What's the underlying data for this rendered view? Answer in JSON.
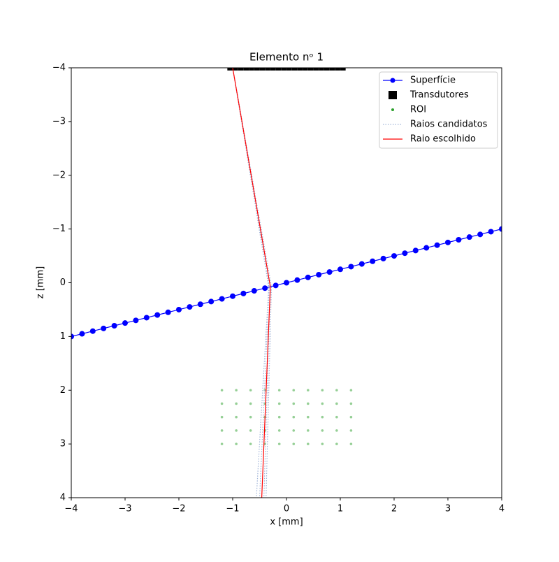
{
  "chart_data": {
    "type": "line",
    "title": "Elemento nᵒ 1",
    "x_label": "x [mm]",
    "y_label": "z [mm]",
    "xlim": [
      -4,
      4
    ],
    "ylim": [
      -4,
      4
    ],
    "y_inverted": true,
    "legend": "upper right",
    "xticks": [
      {
        "value": -4,
        "label": "−4"
      },
      {
        "value": -3,
        "label": "−3"
      },
      {
        "value": -2,
        "label": "−2"
      },
      {
        "value": -1,
        "label": "−1"
      },
      0,
      1,
      2,
      3,
      4
    ],
    "yticks": [
      {
        "value": -4,
        "label": "−4"
      },
      {
        "value": -3,
        "label": "−3"
      },
      {
        "value": -2,
        "label": "−2"
      },
      {
        "value": -1,
        "label": "−1"
      },
      0,
      1,
      2,
      3,
      4
    ],
    "series": [
      {
        "name": "Superfície",
        "color": "#0000ff",
        "marker": "o",
        "linestyle": "-",
        "x": [
          -4,
          -3.8,
          -3.6,
          -3.4,
          -3.2,
          -3,
          -2.8,
          -2.6,
          -2.4,
          -2.2,
          -2,
          -1.8,
          -1.6,
          -1.4,
          -1.2,
          -1,
          -0.8,
          -0.6,
          -0.4,
          -0.2,
          0,
          0.2,
          0.4,
          0.6,
          0.8,
          1,
          1.2,
          1.4,
          1.6,
          1.8,
          2,
          2.2,
          2.4,
          2.6,
          2.8,
          3,
          3.2,
          3.4,
          3.6,
          3.8,
          4
        ],
        "values": [
          1,
          0.95,
          0.9,
          0.85,
          0.8,
          0.75,
          0.7,
          0.65,
          0.6,
          0.55,
          0.5,
          0.45,
          0.4,
          0.35,
          0.3,
          0.25,
          0.2,
          0.15,
          0.1,
          0.05,
          0,
          -0.05,
          -0.1,
          -0.15,
          -0.2,
          -0.25,
          -0.3,
          -0.35,
          -0.4,
          -0.45,
          -0.5,
          -0.55,
          -0.6,
          -0.65,
          -0.7,
          -0.75,
          -0.8,
          -0.85,
          -0.9,
          -0.95,
          -1
        ]
      },
      {
        "name": "Transdutores",
        "color": "#000000",
        "marker": "s",
        "linestyle": "none",
        "x": [
          -1.05,
          -0.95,
          -0.85,
          -0.75,
          -0.65,
          -0.55,
          -0.45,
          -0.35,
          -0.25,
          -0.15,
          -0.05,
          0.05,
          0.15,
          0.25,
          0.35,
          0.45,
          0.55,
          0.65,
          0.75,
          0.85,
          0.95,
          1.05
        ],
        "values": [
          -4,
          -4,
          -4,
          -4,
          -4,
          -4,
          -4,
          -4,
          -4,
          -4,
          -4,
          -4,
          -4,
          -4,
          -4,
          -4,
          -4,
          -4,
          -4,
          -4,
          -4,
          -4
        ]
      },
      {
        "name": "ROI",
        "color": "#2ca02c",
        "marker": "dot",
        "linestyle": "none",
        "x": [
          -1.2,
          -0.9333,
          -0.6667,
          -0.4,
          -0.1333,
          0.1333,
          0.4,
          0.6667,
          0.9333,
          1.2,
          -1.2,
          -0.9333,
          -0.6667,
          -0.4,
          -0.1333,
          0.1333,
          0.4,
          0.6667,
          0.9333,
          1.2,
          -1.2,
          -0.9333,
          -0.6667,
          -0.4,
          -0.1333,
          0.1333,
          0.4,
          0.6667,
          0.9333,
          1.2,
          -1.2,
          -0.9333,
          -0.6667,
          -0.4,
          -0.1333,
          0.1333,
          0.4,
          0.6667,
          0.9333,
          1.2,
          -1.2,
          -0.9333,
          -0.6667,
          -0.4,
          -0.1333,
          0.1333,
          0.4,
          0.6667,
          0.9333,
          1.2
        ],
        "values": [
          2,
          2,
          2,
          2,
          2,
          2,
          2,
          2,
          2,
          2,
          2.25,
          2.25,
          2.25,
          2.25,
          2.25,
          2.25,
          2.25,
          2.25,
          2.25,
          2.25,
          2.5,
          2.5,
          2.5,
          2.5,
          2.5,
          2.5,
          2.5,
          2.5,
          2.5,
          2.5,
          2.75,
          2.75,
          2.75,
          2.75,
          2.75,
          2.75,
          2.75,
          2.75,
          2.75,
          2.75,
          3,
          3,
          3,
          3,
          3,
          3,
          3,
          3,
          3,
          3
        ]
      },
      {
        "name": "Raios candidatos",
        "color": "#a0b4d8",
        "marker": null,
        "linestyle": ":",
        "x": [
          -1.0,
          -0.32,
          -0.5,
          null,
          -1.0,
          -0.3,
          -0.42,
          null,
          -1.0,
          -0.28,
          -0.38,
          null,
          -1.0,
          -0.33,
          -0.56
        ],
        "values": [
          -4,
          0.08,
          4,
          null,
          -4,
          0.075,
          4,
          null,
          -4,
          0.07,
          4,
          null,
          -4,
          0.083,
          4
        ]
      },
      {
        "name": "Raio escolhido",
        "color": "#ff0000",
        "marker": null,
        "linestyle": "-",
        "x": [
          -1.0,
          -0.3,
          -0.46
        ],
        "values": [
          -4,
          0.075,
          4
        ]
      }
    ]
  }
}
